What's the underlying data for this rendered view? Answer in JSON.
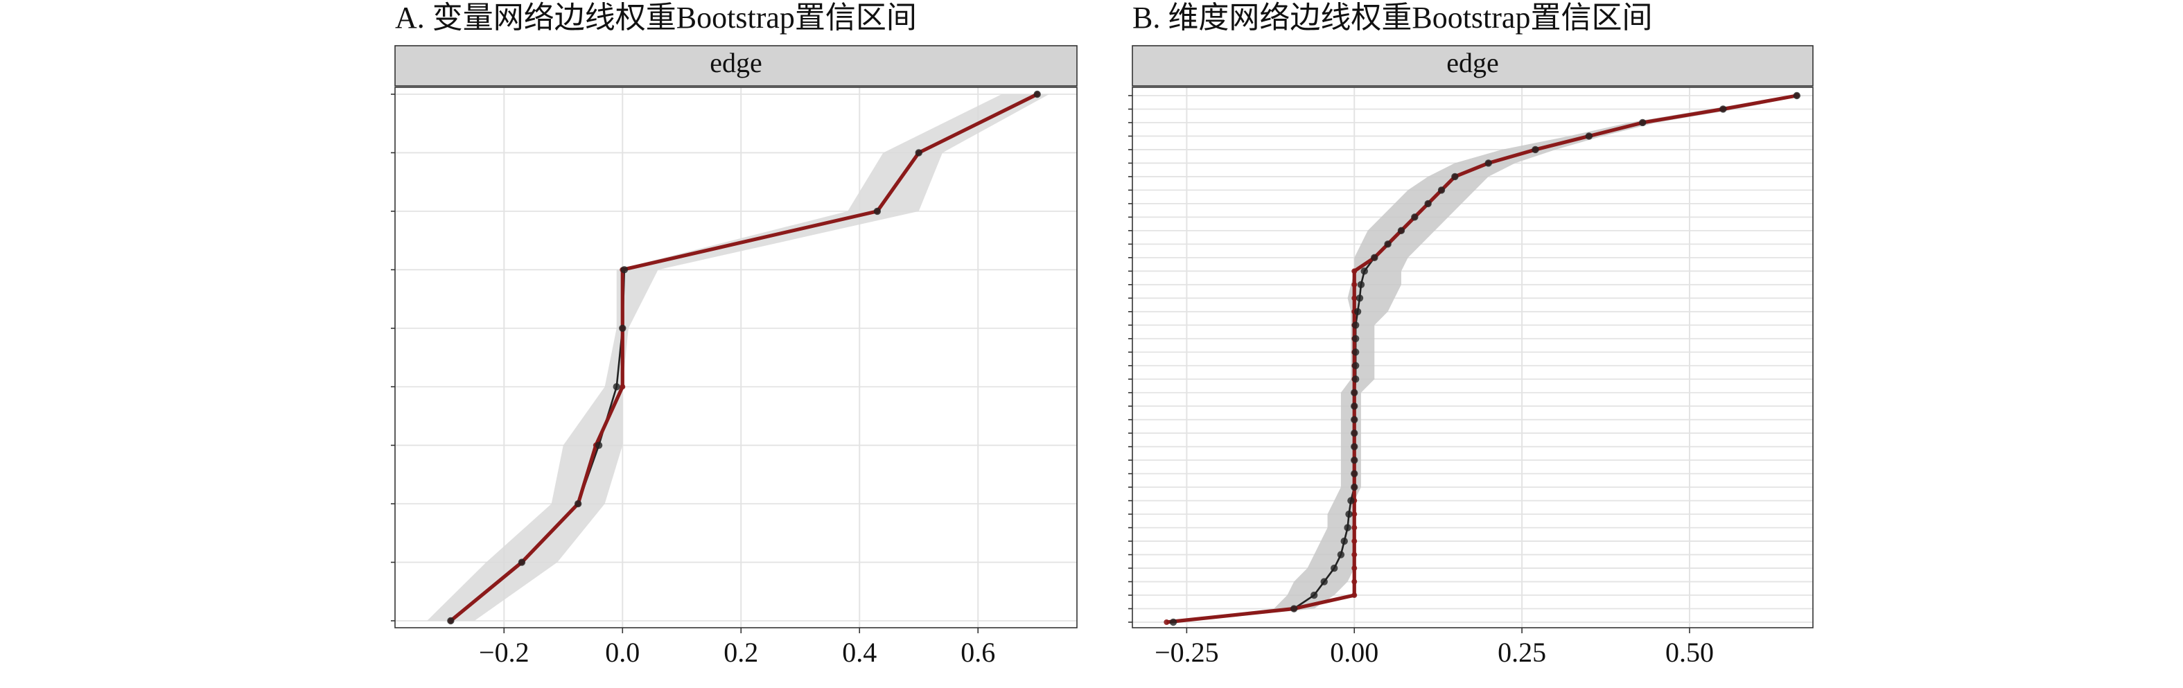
{
  "chart_data": [
    {
      "type": "ci_line",
      "title": "A. 变量网络边线权重Bootstrap置信区间",
      "strip": "edge",
      "categories": [
        null,
        null,
        null,
        null,
        null,
        null,
        null,
        null,
        null,
        null
      ],
      "band": {
        "color": "#d9d9d9",
        "lower": [
          -0.33,
          -0.23,
          -0.12,
          -0.1,
          -0.03,
          -0.01,
          -0.01,
          0.38,
          0.44,
          0.64
        ],
        "upper": [
          -0.25,
          -0.11,
          -0.03,
          0.0,
          0.0,
          0.01,
          0.06,
          0.5,
          0.54,
          0.72
        ]
      },
      "series": [
        {
          "color": "#222222",
          "values": [
            -0.29,
            -0.17,
            -0.075,
            -0.04,
            -0.01,
            0.0,
            0.003,
            0.43,
            0.5,
            0.7
          ]
        },
        {
          "color": "#8b1a1a",
          "values": [
            -0.29,
            -0.17,
            -0.075,
            -0.045,
            0.0,
            0.0,
            0.0,
            0.43,
            0.5,
            0.7
          ]
        }
      ],
      "xlim": [
        -0.384,
        0.767
      ],
      "xticks": [
        {
          "value": -0.2,
          "label": "−0.2"
        },
        {
          "value": 0,
          "label": "0.0"
        },
        0.2,
        0.4,
        0.6
      ],
      "grid": true
    },
    {
      "type": "ci_line",
      "title": "B. 维度网络边线权重Bootstrap置信区间",
      "strip": "edge",
      "categories": [
        null,
        null,
        null,
        null,
        null,
        null,
        null,
        null,
        null,
        null,
        null,
        null,
        null,
        null,
        null,
        null,
        null,
        null,
        null,
        null,
        null,
        null,
        null,
        null,
        null,
        null,
        null,
        null,
        null,
        null,
        null,
        null,
        null,
        null,
        null,
        null,
        null,
        null,
        null,
        null
      ],
      "band": {
        "color": "#c8c8c8",
        "lower": [
          -0.29,
          -0.12,
          -0.1,
          -0.09,
          -0.07,
          -0.06,
          -0.05,
          -0.04,
          -0.04,
          -0.03,
          -0.02,
          -0.02,
          -0.02,
          -0.02,
          -0.02,
          -0.02,
          -0.02,
          -0.02,
          -0.005,
          -0.005,
          -0.005,
          -0.005,
          -0.005,
          -0.005,
          -0.01,
          -0.005,
          0,
          0,
          0.01,
          0.02,
          0.04,
          0.06,
          0.08,
          0.11,
          0.15,
          0.22,
          0.32,
          0.41,
          0.53,
          0.65
        ],
        "upper": [
          -0.26,
          -0.06,
          -0.03,
          -0.01,
          0,
          0,
          0,
          0,
          0,
          0,
          0.01,
          0.01,
          0.01,
          0.01,
          0.01,
          0.01,
          0.01,
          0.01,
          0.03,
          0.03,
          0.03,
          0.03,
          0.03,
          0.05,
          0.06,
          0.07,
          0.07,
          0.08,
          0.1,
          0.12,
          0.14,
          0.16,
          0.18,
          0.2,
          0.24,
          0.3,
          0.37,
          0.45,
          0.57,
          0.67
        ]
      },
      "series": [
        {
          "color": "#222222",
          "values": [
            -0.27,
            -0.09,
            -0.06,
            -0.045,
            -0.03,
            -0.02,
            -0.015,
            -0.01,
            -0.008,
            -0.005,
            0,
            0,
            0,
            0,
            0,
            0,
            0,
            0,
            0.002,
            0.002,
            0.002,
            0.002,
            0.002,
            0.005,
            0.008,
            0.01,
            0.015,
            0.03,
            0.05,
            0.07,
            0.09,
            0.11,
            0.13,
            0.15,
            0.2,
            0.27,
            0.35,
            0.43,
            0.55,
            0.66
          ]
        },
        {
          "color": "#8b1a1a",
          "values": [
            -0.28,
            -0.09,
            0,
            0,
            0,
            0,
            0,
            0,
            0,
            0,
            0,
            0,
            0,
            0,
            0,
            0,
            0,
            0,
            0,
            0,
            0,
            0,
            0,
            0,
            0,
            0,
            0,
            0.03,
            0.05,
            0.07,
            0.09,
            0.11,
            0.13,
            0.15,
            0.2,
            0.27,
            0.35,
            0.43,
            0.55,
            0.66
          ]
        }
      ],
      "xlim": [
        -0.331,
        0.684
      ],
      "xticks": [
        {
          "value": -0.25,
          "label": "−0.25"
        },
        {
          "value": 0,
          "label": "0.00"
        },
        0.25,
        {
          "value": 0.5,
          "label": "0.50"
        }
      ],
      "grid": true
    }
  ]
}
